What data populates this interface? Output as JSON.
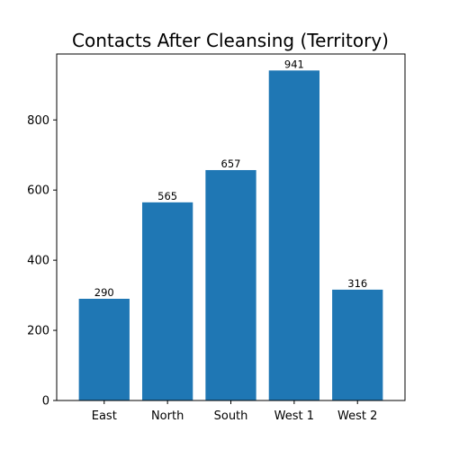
{
  "chart_data": {
    "type": "bar",
    "title": "Contacts After Cleansing (Territory)",
    "xlabel": "",
    "ylabel": "",
    "categories": [
      "East",
      "North",
      "South",
      "West 1",
      "West 2"
    ],
    "values": [
      290,
      565,
      657,
      941,
      316
    ],
    "data_labels": [
      "290",
      "565",
      "657",
      "941",
      "316"
    ],
    "ylim": [
      0,
      988
    ],
    "yticks": [
      0,
      200,
      400,
      600,
      800
    ],
    "ytick_labels": [
      "0",
      "200",
      "400",
      "600",
      "800"
    ],
    "grid": false,
    "legend": "none",
    "bar_color": "#1f77b4"
  }
}
